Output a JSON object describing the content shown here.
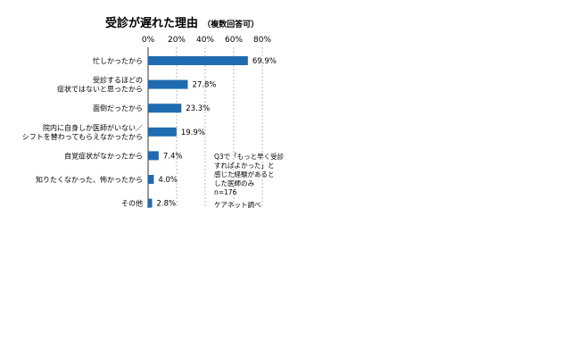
{
  "chart_data": {
    "type": "bar",
    "orientation": "horizontal",
    "title": "受診が遅れた理由",
    "subtitle": "（複数回答可）",
    "x_ticks": [
      "0%",
      "20%",
      "40%",
      "60%",
      "80%"
    ],
    "xlim": [
      0,
      80
    ],
    "grid": "dashed vertical",
    "categories": [
      [
        "忙しかったから"
      ],
      [
        "受診するほどの",
        "症状ではないと思ったから"
      ],
      [
        "面倒だったから"
      ],
      [
        "院内に自身しか医師がいない／",
        "シフトを替わってもらえなかったから"
      ],
      [
        "自覚症状がなかったから"
      ],
      [
        "知りたくなかった、怖かったから"
      ],
      [
        "その他"
      ]
    ],
    "values": [
      69.9,
      27.8,
      23.3,
      19.9,
      7.4,
      4.0,
      2.8
    ],
    "value_labels": [
      "69.9%",
      "27.8%",
      "23.3%",
      "19.9%",
      "7.4%",
      "4.0%",
      "2.8%"
    ],
    "bar_color": "#1f6bb0"
  },
  "note": {
    "lines": [
      "Q3で「もっと早く受診",
      "すればよかった」と",
      "感じた経験があると",
      "した医師のみ",
      "n=176"
    ],
    "source": "ケアネット調べ"
  }
}
